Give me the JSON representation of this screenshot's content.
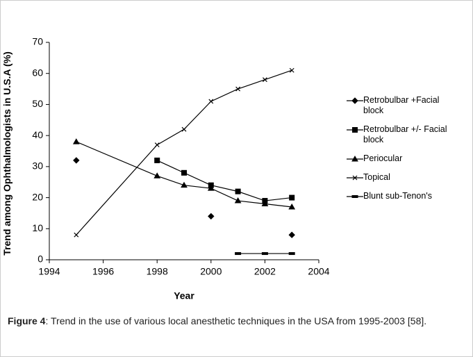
{
  "chart_data": {
    "type": "line",
    "xlabel": "Year",
    "ylabel": "Trend among Ophthalmologists in U.S.A (%)",
    "x": [
      1995,
      1998,
      1999,
      2000,
      2001,
      2002,
      2003
    ],
    "series": [
      {
        "name": "Retrobulbar +Facial block",
        "color": "#000000",
        "marker": "diamond",
        "values": [
          32,
          null,
          null,
          14,
          null,
          null,
          8
        ]
      },
      {
        "name": "Retrobulbar +/- Facial block",
        "color": "#000000",
        "marker": "square",
        "values": [
          null,
          32,
          28,
          24,
          22,
          19,
          20
        ]
      },
      {
        "name": "Periocular",
        "color": "#000000",
        "marker": "triangle",
        "values": [
          38,
          27,
          24,
          23,
          19,
          18,
          17
        ]
      },
      {
        "name": "Topical",
        "color": "#000000",
        "marker": "x",
        "values": [
          8,
          37,
          42,
          51,
          55,
          58,
          61
        ]
      },
      {
        "name": "Blunt sub-Tenon's",
        "color": "#000000",
        "marker": "dash",
        "values": [
          null,
          null,
          null,
          null,
          2,
          2,
          2
        ]
      }
    ],
    "xlim": [
      1994,
      2004
    ],
    "xticks": [
      1994,
      1996,
      1998,
      2000,
      2002,
      2004
    ],
    "ylim": [
      0,
      70
    ],
    "yticks": [
      0,
      10,
      20,
      30,
      40,
      50,
      60,
      70
    ],
    "grid": false,
    "legend": "right",
    "caption": {
      "label": "Figure 4",
      "text": ": Trend in the use of various local anesthetic techniques in the USA from 1995-2003 [58]."
    }
  }
}
